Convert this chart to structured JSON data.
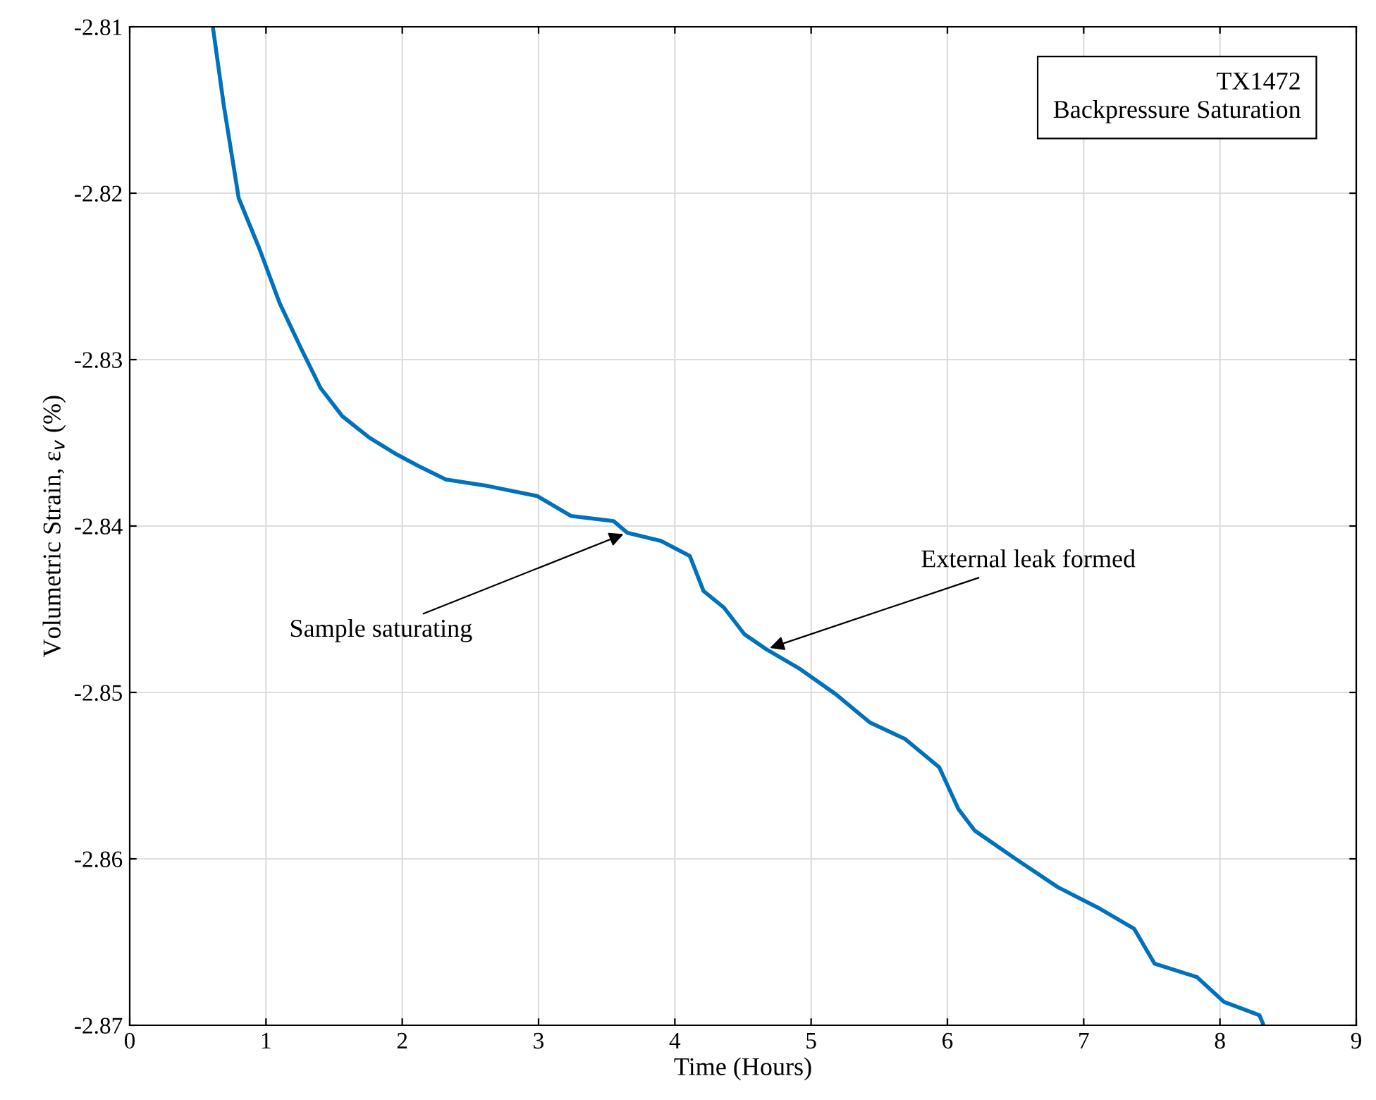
{
  "chart_data": {
    "type": "line",
    "xlabel": "Time (Hours)",
    "ylabel": "Volumetric Strain, ε$_{v}$ (%)",
    "xlim": [
      0,
      9
    ],
    "ylim": [
      -2.87,
      -2.81
    ],
    "xticks": [
      0,
      1,
      2,
      3,
      4,
      5,
      6,
      7,
      8,
      9
    ],
    "yticks": [
      -2.87,
      -2.86,
      -2.85,
      -2.84,
      -2.83,
      -2.82,
      -2.81
    ],
    "grid": true,
    "series": [
      {
        "color": "#0072bd",
        "x": [
          0.61,
          0.69,
          0.8,
          0.95,
          1.1,
          1.25,
          1.4,
          1.56,
          1.76,
          1.96,
          2.12,
          2.32,
          2.63,
          2.99,
          3.24,
          3.55,
          3.65,
          3.9,
          4.11,
          4.21,
          4.36,
          4.51,
          4.67,
          4.92,
          5.18,
          5.43,
          5.69,
          5.94,
          6.08,
          6.2,
          6.5,
          6.81,
          7.12,
          7.37,
          7.52,
          7.83,
          8.03,
          8.29,
          8.32
        ],
        "values": [
          -2.81,
          -2.8147,
          -2.8203,
          -2.8233,
          -2.8266,
          -2.8292,
          -2.8317,
          -2.8334,
          -2.8347,
          -2.8357,
          -2.8364,
          -2.8372,
          -2.8376,
          -2.8382,
          -2.8394,
          -2.8397,
          -2.8404,
          -2.8409,
          -2.8418,
          -2.8439,
          -2.8449,
          -2.8465,
          -2.8474,
          -2.8486,
          -2.8501,
          -2.8518,
          -2.8528,
          -2.8545,
          -2.857,
          -2.8583,
          -2.86,
          -2.8617,
          -2.863,
          -2.8642,
          -2.8663,
          -2.8671,
          -2.8686,
          -2.8694,
          -2.87
        ]
      }
    ],
    "annotations": [
      {
        "text": "Sample saturating",
        "x": 3.65,
        "y": -2.8404
      },
      {
        "text": "External leak formed",
        "x": 4.67,
        "y": -2.8474
      },
      "TX1472\nBackpressure Saturation"
    ]
  }
}
